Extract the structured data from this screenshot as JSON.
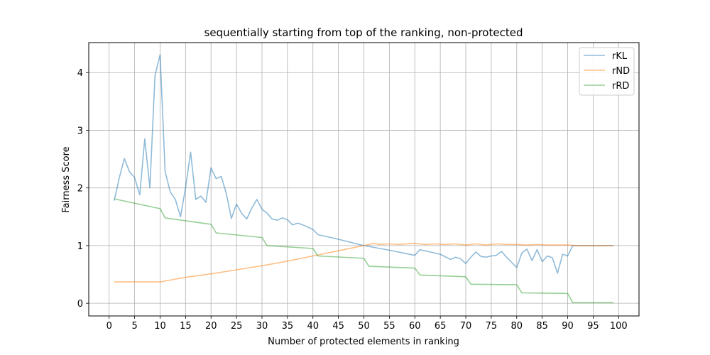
{
  "chart_data": {
    "type": "line",
    "title": "sequentially starting from top of the ranking, non-protected",
    "xlabel": "Number of protected elements in ranking",
    "ylabel": "Fairness Score",
    "xlim": [
      -4,
      104
    ],
    "ylim": [
      -0.22,
      4.52
    ],
    "xticks": [
      0,
      5,
      10,
      15,
      20,
      25,
      30,
      35,
      40,
      45,
      50,
      55,
      60,
      65,
      70,
      75,
      80,
      85,
      90,
      95,
      100
    ],
    "yticks": [
      0,
      1,
      2,
      3,
      4
    ],
    "grid": true,
    "legend_position": "top-right",
    "series": [
      {
        "name": "rKL",
        "color": "#1f77b4",
        "x": [
          1,
          2,
          3,
          4,
          5,
          6,
          7,
          8,
          9,
          10,
          11,
          12,
          13,
          14,
          15,
          16,
          17,
          18,
          19,
          20,
          21,
          22,
          23,
          24,
          25,
          26,
          27,
          28,
          29,
          30,
          31,
          32,
          33,
          34,
          35,
          36,
          37,
          38,
          39,
          40,
          41,
          45,
          50,
          55,
          60,
          61,
          65,
          67,
          68,
          69,
          70,
          71,
          72,
          73,
          74,
          75,
          76,
          77,
          78,
          79,
          80,
          81,
          82,
          83,
          84,
          85,
          86,
          87,
          88,
          89,
          90,
          91,
          92,
          95,
          99
        ],
        "y": [
          1.78,
          2.18,
          2.51,
          2.28,
          2.18,
          1.88,
          2.85,
          2.0,
          3.95,
          4.31,
          2.28,
          1.93,
          1.8,
          1.5,
          2.0,
          2.62,
          1.8,
          1.86,
          1.75,
          2.35,
          2.16,
          2.2,
          1.9,
          1.47,
          1.72,
          1.56,
          1.46,
          1.65,
          1.8,
          1.63,
          1.56,
          1.46,
          1.44,
          1.48,
          1.45,
          1.36,
          1.39,
          1.36,
          1.32,
          1.28,
          1.19,
          1.11,
          1.0,
          0.92,
          0.83,
          0.93,
          0.85,
          0.76,
          0.8,
          0.77,
          0.69,
          0.8,
          0.89,
          0.81,
          0.8,
          0.82,
          0.83,
          0.9,
          0.8,
          0.71,
          0.62,
          0.87,
          0.94,
          0.74,
          0.93,
          0.72,
          0.82,
          0.79,
          0.52,
          0.85,
          0.82,
          1.0,
          1.0,
          1.0,
          1.0
        ]
      },
      {
        "name": "rND",
        "color": "#ff7f0e",
        "x": [
          1,
          10,
          15,
          20,
          25,
          30,
          35,
          40,
          45,
          50,
          52,
          53,
          55,
          57,
          60,
          62,
          64,
          66,
          68,
          70,
          72,
          74,
          76,
          78,
          80,
          82,
          84,
          86,
          88,
          90,
          92,
          95,
          99
        ],
        "y": [
          0.37,
          0.37,
          0.45,
          0.51,
          0.58,
          0.65,
          0.73,
          0.82,
          0.91,
          1.0,
          1.04,
          1.02,
          1.03,
          1.02,
          1.04,
          1.02,
          1.03,
          1.02,
          1.03,
          1.01,
          1.03,
          1.01,
          1.03,
          1.02,
          1.02,
          1.01,
          1.02,
          1.01,
          1.01,
          1.01,
          1.0,
          1.0,
          1.0
        ]
      },
      {
        "name": "rRD",
        "color": "#2ca02c",
        "x": [
          1,
          10,
          11,
          20,
          21,
          30,
          31,
          40,
          41,
          50,
          51,
          60,
          61,
          70,
          71,
          80,
          81,
          90,
          91,
          99
        ],
        "y": [
          1.81,
          1.64,
          1.48,
          1.37,
          1.22,
          1.14,
          1.0,
          0.95,
          0.82,
          0.78,
          0.64,
          0.61,
          0.49,
          0.46,
          0.33,
          0.32,
          0.18,
          0.17,
          0.01,
          0.01
        ]
      }
    ]
  }
}
